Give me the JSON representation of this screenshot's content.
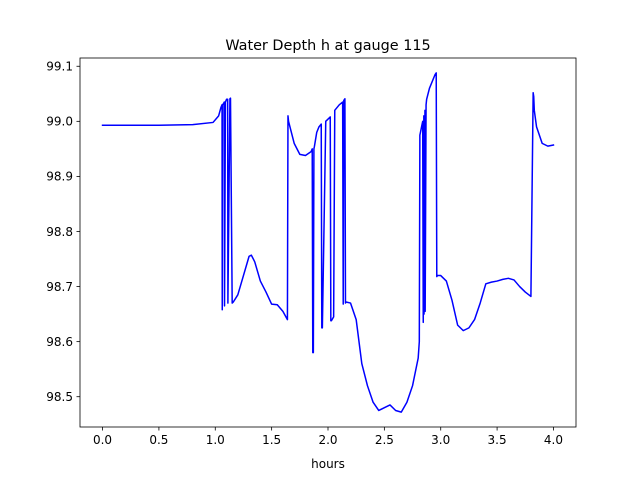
{
  "chart_data": {
    "type": "line",
    "title": "Water Depth h at gauge 115",
    "xlabel": "hours",
    "ylabel": "",
    "xlim": [
      -0.2,
      4.2
    ],
    "ylim": [
      98.445,
      99.115
    ],
    "x_ticks": [
      0.0,
      0.5,
      1.0,
      1.5,
      2.0,
      2.5,
      3.0,
      3.5,
      4.0
    ],
    "x_tick_labels": [
      "0.0",
      "0.5",
      "1.0",
      "1.5",
      "2.0",
      "2.5",
      "3.0",
      "3.5",
      "4.0"
    ],
    "y_ticks": [
      98.5,
      98.6,
      98.7,
      98.8,
      98.9,
      99.0,
      99.1
    ],
    "y_tick_labels": [
      "98.5",
      "98.6",
      "98.7",
      "98.8",
      "98.9",
      "99.0",
      "99.1"
    ],
    "grid": false,
    "legend": "none",
    "series": [
      {
        "color": "#0000ff",
        "x": [
          0.0,
          0.5,
          0.8,
          0.98,
          1.03,
          1.05,
          1.06,
          1.062,
          1.065,
          1.075,
          1.08,
          1.082,
          1.09,
          1.1,
          1.11,
          1.112,
          1.13,
          1.135,
          1.15,
          1.16,
          1.2,
          1.25,
          1.3,
          1.32,
          1.35,
          1.4,
          1.45,
          1.5,
          1.55,
          1.6,
          1.64,
          1.645,
          1.65,
          1.7,
          1.75,
          1.8,
          1.85,
          1.86,
          1.865,
          1.87,
          1.875,
          1.88,
          1.9,
          1.92,
          1.94,
          1.945,
          1.95,
          1.98,
          2.02,
          2.025,
          2.03,
          2.05,
          2.06,
          2.1,
          2.13,
          2.135,
          2.14,
          2.15,
          2.155,
          2.16,
          2.2,
          2.25,
          2.3,
          2.35,
          2.4,
          2.45,
          2.5,
          2.55,
          2.6,
          2.65,
          2.7,
          2.75,
          2.8,
          2.81,
          2.815,
          2.82,
          2.84,
          2.845,
          2.85,
          2.852,
          2.86,
          2.862,
          2.87,
          2.875,
          2.9,
          2.95,
          2.96,
          2.965,
          2.97,
          3.0,
          3.05,
          3.1,
          3.15,
          3.2,
          3.25,
          3.3,
          3.35,
          3.4,
          3.45,
          3.5,
          3.55,
          3.6,
          3.65,
          3.7,
          3.75,
          3.8,
          3.82,
          3.825,
          3.83,
          3.85,
          3.9,
          3.95,
          4.0
        ],
        "y": [
          98.993,
          98.993,
          98.994,
          98.998,
          99.01,
          99.025,
          99.03,
          98.658,
          99.03,
          99.033,
          99.035,
          98.665,
          99.035,
          99.04,
          99.04,
          98.67,
          99.041,
          99.042,
          98.67,
          98.672,
          98.685,
          98.72,
          98.755,
          98.757,
          98.745,
          98.71,
          98.69,
          98.668,
          98.667,
          98.655,
          98.64,
          99.01,
          99.0,
          98.96,
          98.94,
          98.938,
          98.945,
          98.95,
          98.58,
          98.58,
          98.95,
          98.955,
          98.98,
          98.99,
          98.995,
          98.625,
          98.625,
          99.0,
          99.008,
          98.638,
          98.638,
          98.645,
          99.02,
          99.03,
          99.035,
          98.668,
          99.038,
          99.041,
          98.67,
          98.672,
          98.67,
          98.64,
          98.56,
          98.52,
          98.49,
          98.475,
          98.48,
          98.485,
          98.475,
          98.472,
          98.49,
          98.52,
          98.57,
          98.6,
          98.975,
          98.98,
          99.0,
          98.635,
          99.01,
          98.65,
          99.02,
          98.655,
          99.03,
          99.04,
          99.06,
          99.085,
          99.088,
          98.718,
          98.72,
          98.72,
          98.71,
          98.675,
          98.63,
          98.62,
          98.625,
          98.64,
          98.67,
          98.705,
          98.708,
          98.71,
          98.713,
          98.715,
          98.712,
          98.7,
          98.69,
          98.682,
          99.052,
          99.045,
          99.02,
          98.99,
          98.96,
          98.955,
          98.957
        ]
      }
    ]
  }
}
